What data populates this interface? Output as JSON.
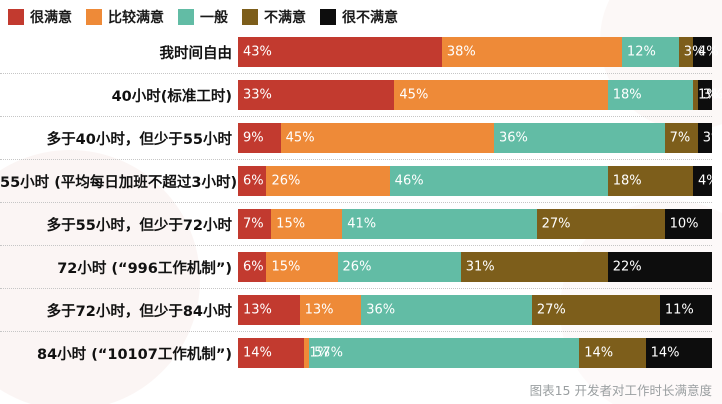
{
  "chart_data": {
    "type": "bar",
    "stacked": true,
    "orientation": "horizontal",
    "unit": "%",
    "xlim": [
      0,
      100
    ],
    "grid": false,
    "legend_position": "top-left",
    "value_labels": "inside-left, white",
    "categories": [
      "我时间自由",
      "40小时(标准工时)",
      "多于40小时，但少于55小时",
      "55小时 (平均每日加班不超过3小时)",
      "多于55小时，但少于72小时",
      "72小时 (“996工作机制”)",
      "多于72小时，但少于84小时",
      "84小时 (“10107工作机制”)"
    ],
    "series": [
      {
        "name": "很满意",
        "color": "#C23A2F",
        "values": [
          43,
          33,
          9,
          6,
          7,
          6,
          13,
          14
        ]
      },
      {
        "name": "比较满意",
        "color": "#EE8A38",
        "values": [
          38,
          45,
          45,
          26,
          15,
          15,
          13,
          1
        ]
      },
      {
        "name": "一般",
        "color": "#62BCA5",
        "values": [
          12,
          18,
          36,
          46,
          41,
          26,
          36,
          57
        ]
      },
      {
        "name": "不满意",
        "color": "#7D5E1B",
        "values": [
          3,
          1,
          7,
          18,
          27,
          31,
          27,
          14
        ]
      },
      {
        "name": "很不满意",
        "color": "#0D0D0D",
        "values": [
          4,
          3,
          3,
          4,
          10,
          22,
          11,
          14
        ]
      }
    ],
    "caption": "图表15 开发者对工作时长满意度",
    "colors": {
      "category_label": "#111111",
      "segment_label": "#ffffff",
      "separator": "#c6c6c6",
      "caption": "#9a9fa1",
      "background": "#ffffff"
    }
  }
}
